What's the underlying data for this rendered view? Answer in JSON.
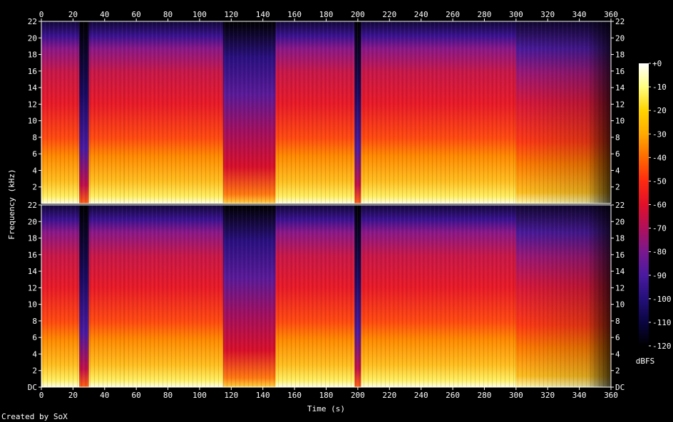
{
  "credit": "Created by SoX",
  "chart_data": {
    "type": "heatmap",
    "title": "",
    "xlabel": "Time (s)",
    "ylabel": "Frequency (kHz)",
    "xlim": [
      0,
      360
    ],
    "ylim_khz": [
      0,
      22
    ],
    "x_ticks": [
      "0",
      "20",
      "40",
      "60",
      "80",
      "100",
      "120",
      "140",
      "160",
      "180",
      "200",
      "220",
      "240",
      "260",
      "280",
      "300",
      "320",
      "340",
      "360"
    ],
    "y_ticks": [
      "DC",
      "2",
      "4",
      "6",
      "8",
      "10",
      "12",
      "14",
      "16",
      "18",
      "20",
      "22"
    ],
    "channels": 2,
    "colorbar": {
      "label": "dBFS",
      "range": [
        -120,
        0
      ],
      "ticks": [
        "+0",
        "-10",
        "-20",
        "-30",
        "-40",
        "-50",
        "-60",
        "-70",
        "-80",
        "-90",
        "-100",
        "-110",
        "-120"
      ],
      "stops": [
        "#ffffff",
        "#ffff80",
        "#ffd400",
        "#ffaa00",
        "#ff6a00",
        "#ff2a10",
        "#e0102a",
        "#b0105a",
        "#7a188e",
        "#4a1aa0",
        "#24107a",
        "#0a0540",
        "#000000"
      ]
    },
    "series": [
      {
        "channel": 1,
        "segments": [
          {
            "t": [
              0,
              24
            ],
            "level": "loud"
          },
          {
            "t": [
              24,
              30
            ],
            "level": "quiet"
          },
          {
            "t": [
              30,
              52
            ],
            "level": "loud"
          },
          {
            "t": [
              52,
              115
            ],
            "level": "loud"
          },
          {
            "t": [
              115,
              148
            ],
            "level": "mid"
          },
          {
            "t": [
              148,
              198
            ],
            "level": "loud"
          },
          {
            "t": [
              198,
              202
            ],
            "level": "quiet"
          },
          {
            "t": [
              202,
              300
            ],
            "level": "loud"
          },
          {
            "t": [
              300,
              360
            ],
            "level": "fade"
          }
        ]
      },
      {
        "channel": 2,
        "segments": [
          {
            "t": [
              0,
              24
            ],
            "level": "loud"
          },
          {
            "t": [
              24,
              30
            ],
            "level": "quiet"
          },
          {
            "t": [
              30,
              52
            ],
            "level": "loud"
          },
          {
            "t": [
              52,
              115
            ],
            "level": "loud"
          },
          {
            "t": [
              115,
              148
            ],
            "level": "mid"
          },
          {
            "t": [
              148,
              198
            ],
            "level": "loud"
          },
          {
            "t": [
              198,
              202
            ],
            "level": "quiet"
          },
          {
            "t": [
              202,
              300
            ],
            "level": "loud"
          },
          {
            "t": [
              300,
              360
            ],
            "level": "fade"
          }
        ]
      }
    ]
  }
}
